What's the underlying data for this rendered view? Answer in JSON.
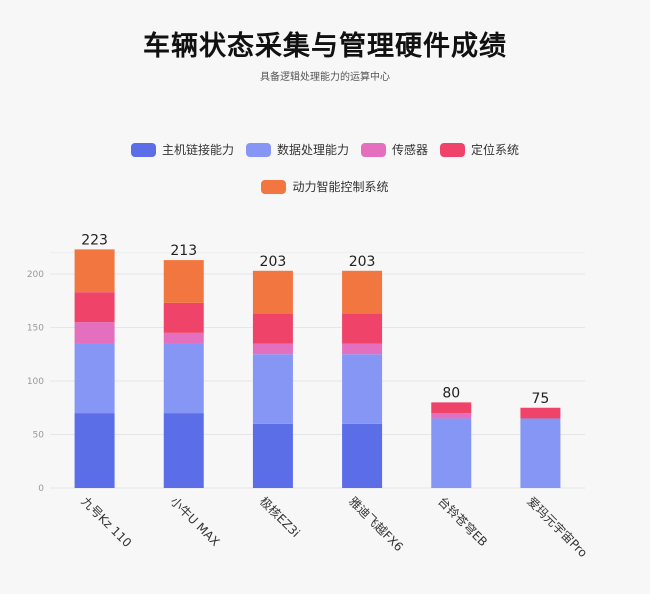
{
  "chart_data": {
    "type": "bar",
    "stacked": true,
    "title": "车辆状态采集与管理硬件成绩",
    "subtitle": "具备逻辑处理能力的运算中心",
    "xlabel": "",
    "ylabel": "",
    "ylim": [
      0,
      230
    ],
    "yticks": [
      0,
      50,
      100,
      150,
      200
    ],
    "grid": true,
    "legend_position": "top",
    "categories": [
      "九号Kz 110",
      "小牛U MAX",
      "极核EZ3i",
      "雅迪飞越FX6",
      "台铃苍穹EB",
      "爱玛元宇宙Pro"
    ],
    "series": [
      {
        "name": "主机链接能力",
        "color": "#5b6ee8",
        "values": [
          70,
          70,
          60,
          60,
          0,
          0
        ]
      },
      {
        "name": "数据处理能力",
        "color": "#8596f5",
        "values": [
          65,
          65,
          65,
          65,
          65,
          65
        ]
      },
      {
        "name": "传感器",
        "color": "#e46fbe",
        "values": [
          20,
          10,
          10,
          10,
          5,
          0
        ]
      },
      {
        "name": "定位系统",
        "color": "#f0436a",
        "values": [
          28,
          28,
          28,
          28,
          10,
          10
        ]
      },
      {
        "name": "动力智能控制系统",
        "color": "#f27640",
        "values": [
          40,
          40,
          40,
          40,
          0,
          0
        ]
      }
    ],
    "totals": [
      223,
      213,
      203,
      203,
      80,
      75
    ]
  },
  "legend": {
    "row1": [
      "主机链接能力",
      "数据处理能力",
      "传感器",
      "定位系统"
    ],
    "row2": [
      "动力智能控制系统"
    ]
  }
}
